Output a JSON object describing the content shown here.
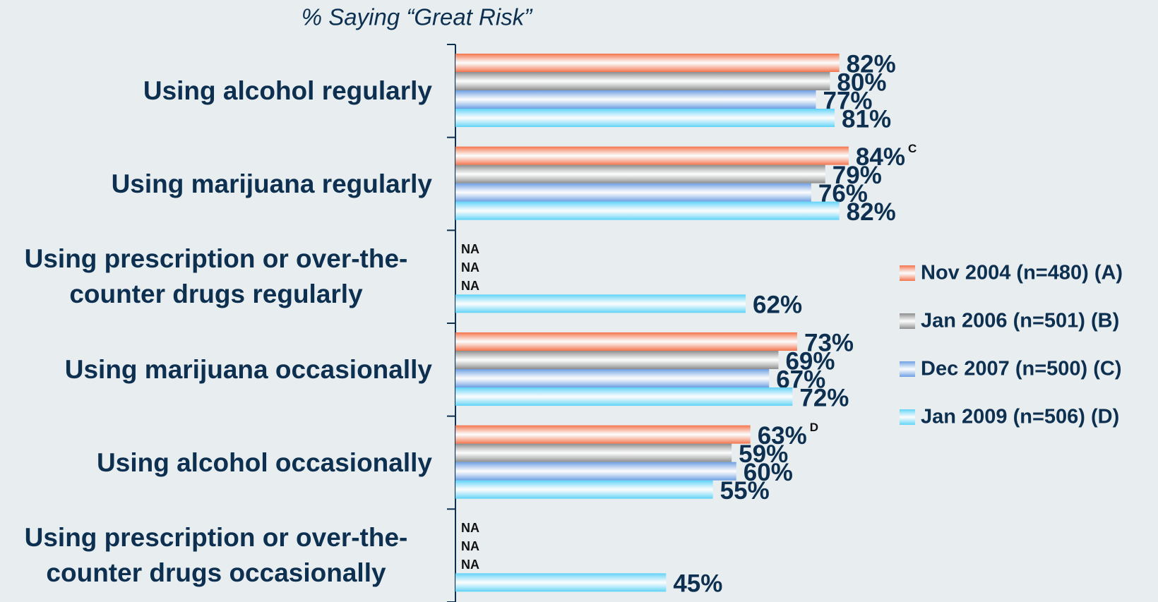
{
  "chart_data": {
    "type": "bar",
    "orientation": "horizontal",
    "title": "% Saying “Great Risk”",
    "categories": [
      "Using alcohol regularly",
      "Using marijuana regularly",
      "Using prescription or over-the-counter drugs regularly",
      "Using marijuana occasionally",
      "Using alcohol occasionally",
      "Using prescription or over-the-counter drugs occasionally"
    ],
    "series": [
      {
        "name": "Nov 2004 (n=480) (A)",
        "color": "#f4734a",
        "values": [
          82,
          84,
          null,
          73,
          63,
          null
        ],
        "value_labels": [
          "82%",
          "84%",
          "NA",
          "73%",
          "63%",
          "NA"
        ],
        "notes": [
          null,
          "C",
          null,
          null,
          "D",
          null
        ]
      },
      {
        "name": "Jan 2006 (n=501) (B)",
        "color": "#8c8c8c",
        "values": [
          80,
          79,
          null,
          69,
          59,
          null
        ],
        "value_labels": [
          "80%",
          "79%",
          "NA",
          "69%",
          "59%",
          "NA"
        ]
      },
      {
        "name": "Dec 2007 (n=500) (C)",
        "color": "#6c9ee2",
        "values": [
          77,
          76,
          null,
          67,
          60,
          null
        ],
        "value_labels": [
          "77%",
          "76%",
          "NA",
          "67%",
          "60%",
          "NA"
        ]
      },
      {
        "name": "Jan 2009 (n=506) (D)",
        "color": "#5fd3f7",
        "values": [
          81,
          82,
          62,
          72,
          55,
          45
        ],
        "value_labels": [
          "81%",
          "82%",
          "62%",
          "72%",
          "55%",
          "45%"
        ]
      }
    ],
    "xlim": [
      0,
      100
    ],
    "legend": "right"
  }
}
